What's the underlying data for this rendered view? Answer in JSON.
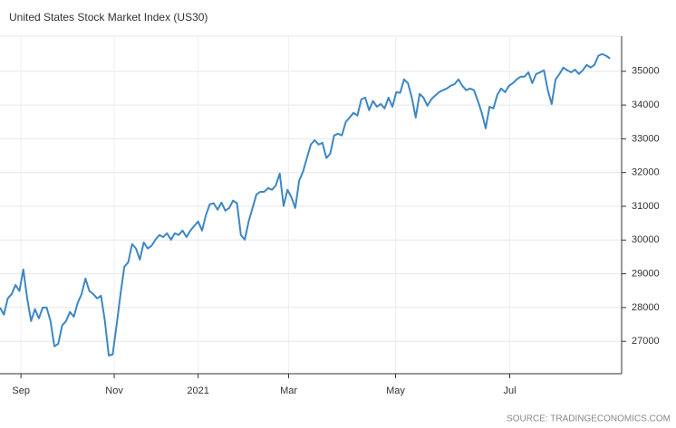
{
  "chart_data": {
    "type": "line",
    "title": "United States Stock Market Index (US30)",
    "source": "SOURCE: TRADINGECONOMICS.COM",
    "series": [
      {
        "name": "US30",
        "color": "#3d87c4",
        "values": [
          28000,
          27790,
          28270,
          28400,
          28670,
          28490,
          29130,
          28270,
          27600,
          27950,
          27680,
          28000,
          28000,
          27600,
          26850,
          26930,
          27470,
          27600,
          27870,
          27730,
          28140,
          28400,
          28860,
          28490,
          28400,
          28270,
          28350,
          27600,
          26580,
          26610,
          27470,
          28380,
          29210,
          29340,
          29880,
          29750,
          29420,
          29930,
          29750,
          29830,
          30010,
          30150,
          30090,
          30200,
          30010,
          30200,
          30150,
          30280,
          30090,
          30280,
          30420,
          30550,
          30280,
          30740,
          31060,
          31090,
          30900,
          31110,
          30870,
          30950,
          31170,
          31090,
          30150,
          30010,
          30550,
          30950,
          31350,
          31430,
          31430,
          31540,
          31490,
          31620,
          31970,
          31010,
          31490,
          31270,
          30950,
          31760,
          32030,
          32430,
          32830,
          32960,
          32830,
          32880,
          32430,
          32560,
          33100,
          33150,
          33100,
          33500,
          33630,
          33770,
          33690,
          34170,
          34220,
          33850,
          34120,
          33950,
          34030,
          33900,
          34220,
          33950,
          34380,
          34360,
          34760,
          34650,
          34220,
          33630,
          34330,
          34220,
          33980,
          34170,
          34280,
          34380,
          34440,
          34490,
          34570,
          34620,
          34760,
          34570,
          34440,
          34490,
          34440,
          34120,
          33770,
          33310,
          33950,
          33900,
          34300,
          34490,
          34380,
          34570,
          34650,
          34760,
          34840,
          34840,
          34970,
          34650,
          34920,
          34970,
          35030,
          34440,
          34030,
          34760,
          34920,
          35110,
          35030,
          34970,
          35050,
          34920,
          35030,
          35190,
          35110,
          35190,
          35460,
          35510,
          35460,
          35380
        ]
      }
    ],
    "xlim": [
      0,
      160
    ],
    "xticks": [
      {
        "value": 5.4,
        "label": "Sep"
      },
      {
        "value": 29.4,
        "label": "Nov"
      },
      {
        "value": 51,
        "label": "2021"
      },
      {
        "value": 74.3,
        "label": "Mar"
      },
      {
        "value": 101.8,
        "label": "May"
      },
      {
        "value": 131.2,
        "label": "Jul"
      }
    ],
    "ylim": [
      26040,
      36040
    ],
    "yticks": [
      27000,
      28000,
      29000,
      30000,
      31000,
      32000,
      33000,
      34000,
      35000
    ],
    "grid": true
  }
}
